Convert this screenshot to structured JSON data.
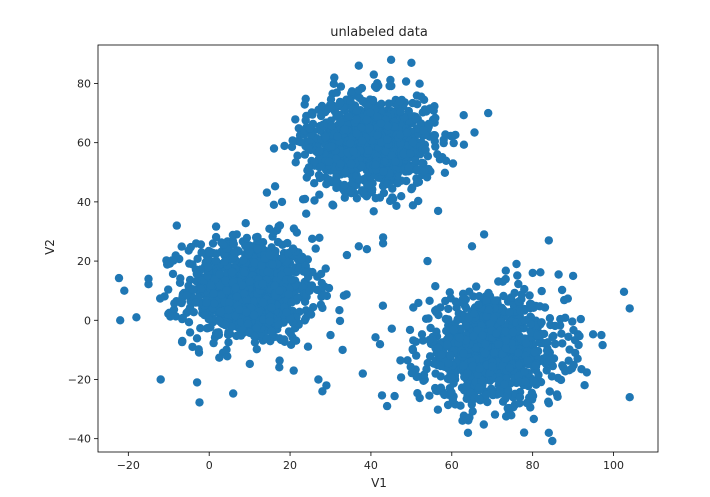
{
  "chart_data": {
    "type": "scatter",
    "title": "unlabeled data",
    "xlabel": "V1",
    "ylabel": "V2",
    "xlim": [
      -27.5,
      111
    ],
    "ylim": [
      -44.5,
      93
    ],
    "x_ticks": [
      -20,
      0,
      20,
      40,
      60,
      80,
      100
    ],
    "y_ticks": [
      -40,
      -20,
      0,
      20,
      40,
      60,
      80
    ],
    "marker_color": "#1f77b4",
    "grid": false,
    "legend": "none",
    "clusters": [
      {
        "center": [
          10,
          10
        ],
        "std": [
          8,
          9
        ],
        "count": 1000
      },
      {
        "center": [
          40,
          60
        ],
        "std": [
          8,
          8
        ],
        "count": 1000
      },
      {
        "center": [
          70,
          -10
        ],
        "std": [
          9,
          9
        ],
        "count": 1000
      }
    ],
    "outliers": [
      [
        -22,
        0
      ],
      [
        -21,
        10
      ],
      [
        -18,
        1
      ],
      [
        -12,
        -20
      ],
      [
        -3,
        -21
      ],
      [
        -8,
        32
      ],
      [
        -15,
        14
      ],
      [
        104,
        4
      ],
      [
        104,
        -26
      ],
      [
        84,
        27
      ],
      [
        90,
        15
      ],
      [
        84,
        -38
      ],
      [
        64,
        -38
      ],
      [
        54,
        20
      ],
      [
        43,
        28
      ],
      [
        43,
        26
      ],
      [
        33,
        -10
      ],
      [
        30,
        -5
      ],
      [
        29,
        -22
      ],
      [
        28,
        -24
      ],
      [
        27,
        -20
      ],
      [
        24,
        36
      ],
      [
        18,
        40
      ],
      [
        16,
        39
      ],
      [
        37,
        25
      ],
      [
        39,
        24
      ],
      [
        51,
        54
      ],
      [
        58,
        61
      ],
      [
        69,
        70
      ],
      [
        41,
        79
      ],
      [
        37,
        86
      ],
      [
        45,
        88
      ],
      [
        50,
        87
      ],
      [
        65,
        25
      ],
      [
        68,
        29
      ],
      [
        76,
        19
      ],
      [
        80,
        16
      ],
      [
        56,
        -18
      ],
      [
        62,
        -6
      ],
      [
        44,
        -29
      ],
      [
        38,
        -18
      ],
      [
        97,
        -5
      ]
    ]
  }
}
